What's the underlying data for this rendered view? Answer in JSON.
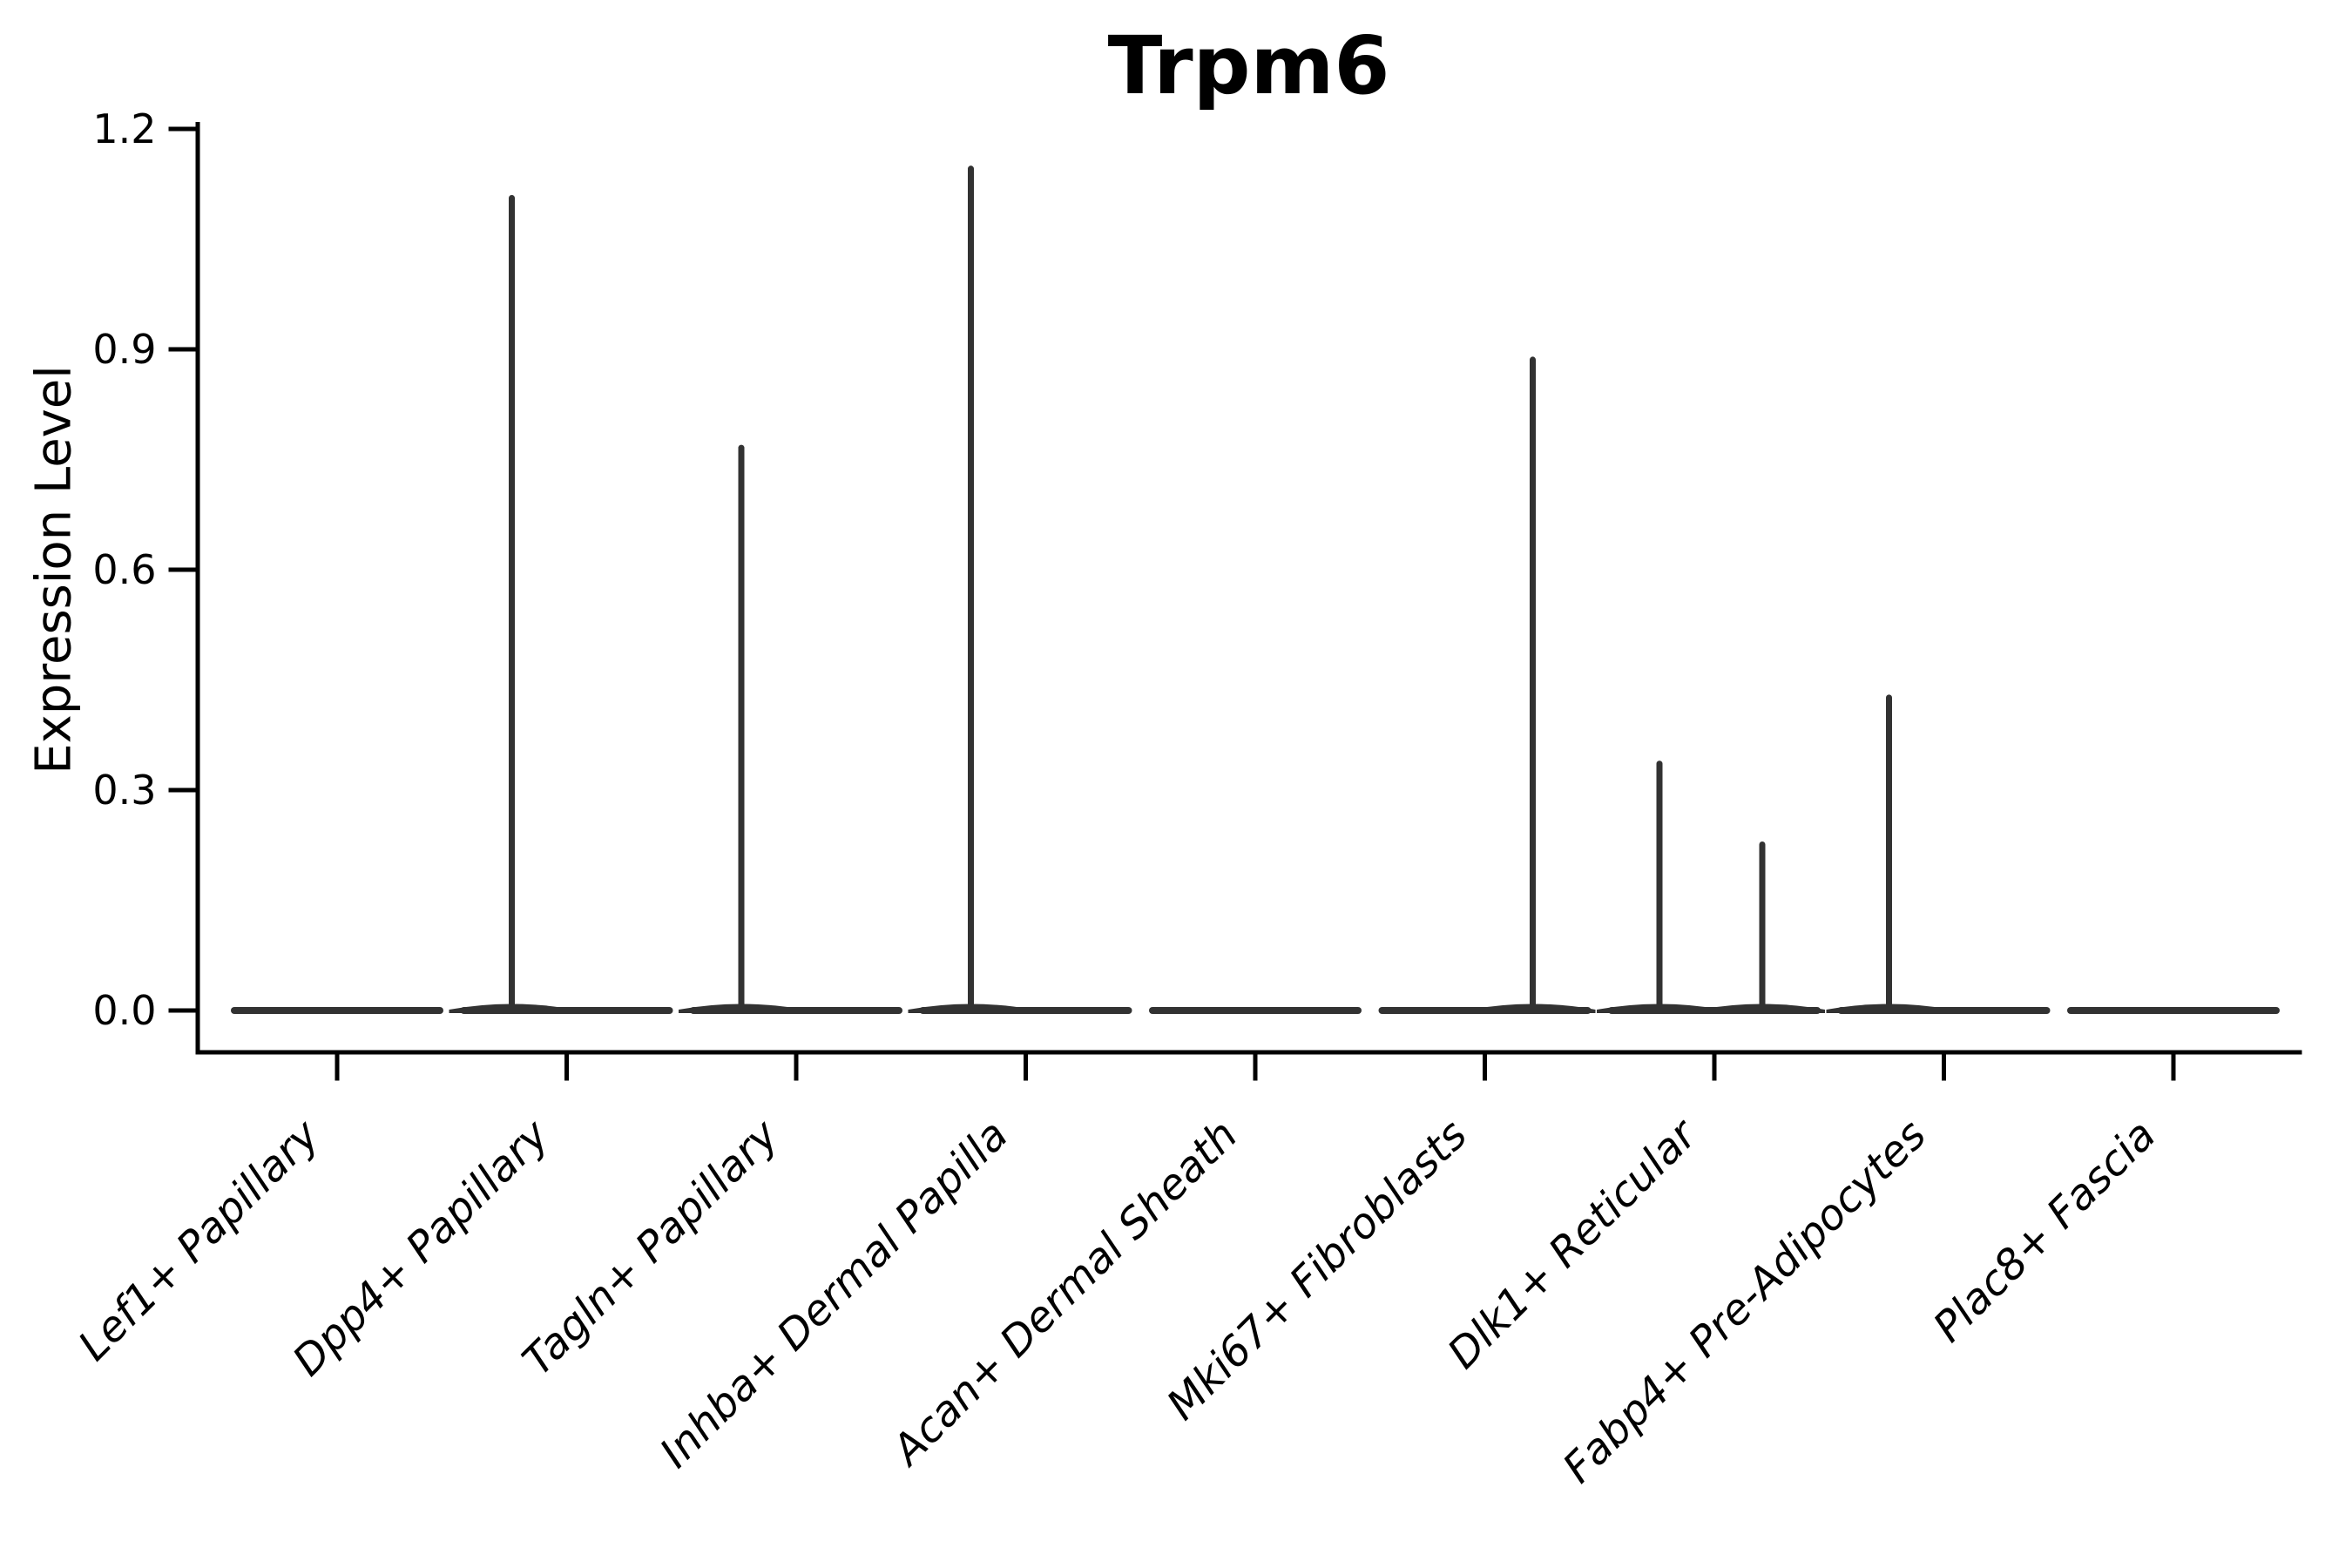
{
  "chart_data": {
    "type": "violin",
    "title": "Trpm6",
    "ylabel": "Expression Level",
    "xlabel": "",
    "ylim": [
      -0.06,
      1.21
    ],
    "yticks": [
      0.0,
      0.3,
      0.6,
      0.9,
      1.2
    ],
    "ytick_labels": [
      "0.0",
      "0.3",
      "0.6",
      "0.9",
      "1.2"
    ],
    "grid": false,
    "legend": null,
    "categories": [
      "Lef1+ Papillary",
      "Dpp4+ Papillary",
      "Tagln+ Papillary",
      "Inhba+ Dermal Papilla",
      "Acan+ Dermal Sheath",
      "Mki67+ Fibroblasts",
      "Dlk1+ Reticular",
      "Fabp4+ Pre-Adipocytes",
      "Plac8+ Fascia"
    ],
    "violins": [
      {
        "category": "Lef1+ Papillary",
        "baseline": 0.0,
        "spikes": []
      },
      {
        "category": "Dpp4+ Papillary",
        "baseline": 0.0,
        "spikes": [
          {
            "side": "left",
            "max": 1.11
          }
        ]
      },
      {
        "category": "Tagln+ Papillary",
        "baseline": 0.0,
        "spikes": [
          {
            "side": "left",
            "max": 0.77
          }
        ]
      },
      {
        "category": "Inhba+ Dermal Papilla",
        "baseline": 0.0,
        "spikes": [
          {
            "side": "left",
            "max": 1.15
          }
        ]
      },
      {
        "category": "Acan+ Dermal Sheath",
        "baseline": 0.0,
        "spikes": []
      },
      {
        "category": "Mki67+ Fibroblasts",
        "baseline": 0.0,
        "spikes": [
          {
            "side": "right",
            "max": 0.89
          }
        ]
      },
      {
        "category": "Dlk1+ Reticular",
        "baseline": 0.0,
        "spikes": [
          {
            "side": "left",
            "max": 0.34
          },
          {
            "side": "right",
            "max": 0.23
          }
        ]
      },
      {
        "category": "Fabp4+ Pre-Adipocytes",
        "baseline": 0.0,
        "spikes": [
          {
            "side": "left",
            "max": 0.43
          }
        ]
      },
      {
        "category": "Plac8+ Fascia",
        "baseline": 0.0,
        "spikes": []
      }
    ],
    "colors": {
      "violin": "#323232",
      "axis": "#000000",
      "background": "#ffffff"
    }
  }
}
